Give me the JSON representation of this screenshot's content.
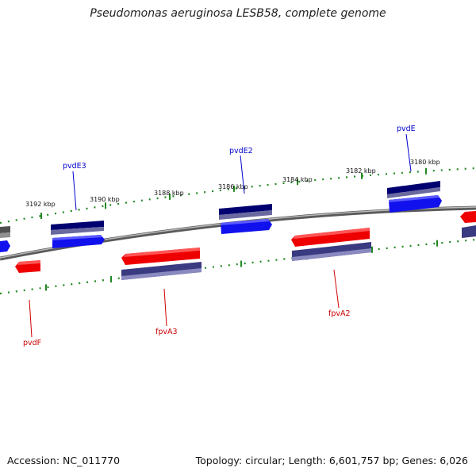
{
  "title": "Pseudomonas aeruginosa LESB58, complete genome",
  "footer": {
    "accession": "Accession: NC_011770",
    "summary": "Topology: circular; Length: 6,601,757 bp; Genes: 6,026"
  },
  "colors": {
    "forward_gene": "#0000ee",
    "forward_gene_dark": "#000066",
    "reverse_gene": "#ee0000",
    "reverse_gene_dark": "#3a3a80",
    "tick": "#228822",
    "backbone": "#7a7a7a",
    "forward_label": "#0000cc",
    "reverse_label": "#cc0000"
  },
  "scale_ticks": [
    {
      "label": "3180 kbp"
    },
    {
      "label": "3182 kbp"
    },
    {
      "label": "3184 kbp"
    },
    {
      "label": "3186 kbp"
    },
    {
      "label": "3188 kbp"
    },
    {
      "label": "3190 kbp"
    },
    {
      "label": "3192 kbp"
    }
  ],
  "genes": [
    {
      "name": "pvdE",
      "strand": "forward"
    },
    {
      "name": "pvdE2",
      "strand": "forward"
    },
    {
      "name": "pvdE3",
      "strand": "forward"
    },
    {
      "name": "fpvA2",
      "strand": "reverse"
    },
    {
      "name": "fpvA3",
      "strand": "reverse"
    },
    {
      "name": "pvdF",
      "strand": "reverse"
    }
  ]
}
